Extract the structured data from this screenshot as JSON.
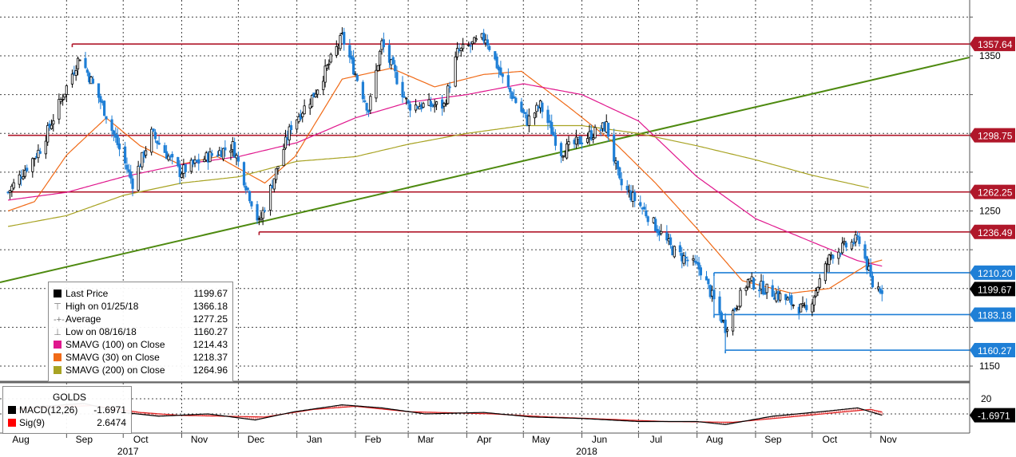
{
  "chart_data": {
    "type": "line",
    "instrument": "GOLDS",
    "x_axis": {
      "month_labels": [
        "Aug",
        "Sep",
        "Oct",
        "Nov",
        "Dec",
        "Jan",
        "Feb",
        "Mar",
        "Apr",
        "May",
        "Jun",
        "Jul",
        "Aug",
        "Sep",
        "Oct",
        "Nov"
      ],
      "year_labels": [
        "2017",
        "2018"
      ]
    },
    "y_axis": {
      "ticks": [
        1150,
        1250,
        1350
      ],
      "ylim": [
        1140,
        1385
      ]
    },
    "horizontal_levels": [
      {
        "value": 1357.64,
        "label": "1357.64",
        "color": "#b0172a",
        "start": "2017-09-04"
      },
      {
        "value": 1298.75,
        "label": "1298.75",
        "color": "#b0172a",
        "start": "2017-08-01"
      },
      {
        "value": 1262.25,
        "label": "1262.25",
        "color": "#b0172a",
        "start": "2017-08-01"
      },
      {
        "value": 1236.49,
        "label": "1236.49",
        "color": "#b0172a",
        "start": "2017-12-12"
      },
      {
        "value": 1210.2,
        "label": "1210.20",
        "color": "#1f7fd6",
        "start": "2018-08-10"
      },
      {
        "value": 1183.18,
        "label": "1183.18",
        "color": "#1f7fd6",
        "start": "2018-08-10"
      },
      {
        "value": 1160.27,
        "label": "1160.27",
        "color": "#1f7fd6",
        "start": "2018-08-16"
      }
    ],
    "trendline": {
      "from": {
        "date": "2017-07-15",
        "value": 1204
      },
      "to": {
        "date": "2018-11-07",
        "value": 1349
      },
      "color": "#4e8a10"
    },
    "price_series": {
      "name": "Last Price",
      "anchors": [
        [
          "2017-08-01",
          1262
        ],
        [
          "2017-08-18",
          1290
        ],
        [
          "2017-09-08",
          1350
        ],
        [
          "2017-09-20",
          1318
        ],
        [
          "2017-10-06",
          1268
        ],
        [
          "2017-10-16",
          1300
        ],
        [
          "2017-10-31",
          1275
        ],
        [
          "2017-11-15",
          1285
        ],
        [
          "2017-11-28",
          1292
        ],
        [
          "2017-12-12",
          1242
        ],
        [
          "2017-12-29",
          1305
        ],
        [
          "2018-01-10",
          1325
        ],
        [
          "2018-01-25",
          1362
        ],
        [
          "2018-02-08",
          1315
        ],
        [
          "2018-02-15",
          1358
        ],
        [
          "2018-03-01",
          1318
        ],
        [
          "2018-03-20",
          1318
        ],
        [
          "2018-03-27",
          1352
        ],
        [
          "2018-04-11",
          1362
        ],
        [
          "2018-04-20",
          1335
        ],
        [
          "2018-05-03",
          1308
        ],
        [
          "2018-05-10",
          1318
        ],
        [
          "2018-05-21",
          1288
        ],
        [
          "2018-06-14",
          1305
        ],
        [
          "2018-06-21",
          1268
        ],
        [
          "2018-07-03",
          1252
        ],
        [
          "2018-07-19",
          1225
        ],
        [
          "2018-08-03",
          1212
        ],
        [
          "2018-08-16",
          1175
        ],
        [
          "2018-08-28",
          1205
        ],
        [
          "2018-09-14",
          1195
        ],
        [
          "2018-09-28",
          1185
        ],
        [
          "2018-10-11",
          1222
        ],
        [
          "2018-10-26",
          1232
        ],
        [
          "2018-11-02",
          1202
        ],
        [
          "2018-11-07",
          1199.67
        ]
      ]
    },
    "moving_averages": [
      {
        "name": "SMAVG (30)",
        "color": "#f06a17",
        "anchors": [
          [
            "2017-08-01",
            1250
          ],
          [
            "2017-08-15",
            1256
          ],
          [
            "2017-09-01",
            1286
          ],
          [
            "2017-09-22",
            1310
          ],
          [
            "2017-10-10",
            1292
          ],
          [
            "2017-10-31",
            1280
          ],
          [
            "2017-11-20",
            1285
          ],
          [
            "2017-12-15",
            1268
          ],
          [
            "2017-12-31",
            1285
          ],
          [
            "2018-01-25",
            1335
          ],
          [
            "2018-02-20",
            1342
          ],
          [
            "2018-03-15",
            1330
          ],
          [
            "2018-04-10",
            1338
          ],
          [
            "2018-04-30",
            1340
          ],
          [
            "2018-05-25",
            1317
          ],
          [
            "2018-06-20",
            1292
          ],
          [
            "2018-07-10",
            1268
          ],
          [
            "2018-07-31",
            1240
          ],
          [
            "2018-08-25",
            1205
          ],
          [
            "2018-09-20",
            1197
          ],
          [
            "2018-10-10",
            1200
          ],
          [
            "2018-10-31",
            1216
          ],
          [
            "2018-11-07",
            1218.37
          ]
        ]
      },
      {
        "name": "SMAVG (100)",
        "color": "#e0178d",
        "anchors": [
          [
            "2017-08-01",
            1257
          ],
          [
            "2017-09-01",
            1262
          ],
          [
            "2017-10-01",
            1272
          ],
          [
            "2017-11-01",
            1280
          ],
          [
            "2017-12-01",
            1285
          ],
          [
            "2018-01-01",
            1294
          ],
          [
            "2018-02-01",
            1310
          ],
          [
            "2018-03-01",
            1320
          ],
          [
            "2018-04-01",
            1325
          ],
          [
            "2018-05-01",
            1332
          ],
          [
            "2018-06-01",
            1325
          ],
          [
            "2018-07-01",
            1308
          ],
          [
            "2018-08-01",
            1272
          ],
          [
            "2018-09-01",
            1245
          ],
          [
            "2018-10-01",
            1230
          ],
          [
            "2018-10-25",
            1218
          ],
          [
            "2018-11-07",
            1214.43
          ]
        ]
      },
      {
        "name": "SMAVG (200)",
        "color": "#a8a323",
        "anchors": [
          [
            "2017-08-01",
            1240
          ],
          [
            "2017-09-01",
            1247
          ],
          [
            "2017-10-01",
            1260
          ],
          [
            "2017-11-01",
            1268
          ],
          [
            "2017-12-01",
            1272
          ],
          [
            "2018-01-01",
            1282
          ],
          [
            "2018-02-01",
            1285
          ],
          [
            "2018-03-01",
            1293
          ],
          [
            "2018-04-01",
            1300
          ],
          [
            "2018-05-01",
            1305
          ],
          [
            "2018-06-01",
            1305
          ],
          [
            "2018-07-01",
            1300
          ],
          [
            "2018-08-01",
            1292
          ],
          [
            "2018-09-01",
            1283
          ],
          [
            "2018-10-01",
            1273
          ],
          [
            "2018-10-31",
            1264.96
          ]
        ]
      }
    ],
    "macd_panel": {
      "title": "GOLDS",
      "y_tick": 20,
      "current_label": "-1.6971",
      "macd_anchors": [
        [
          "2017-08-01",
          6
        ],
        [
          "2017-08-20",
          10
        ],
        [
          "2017-09-10",
          14
        ],
        [
          "2017-10-01",
          2
        ],
        [
          "2017-10-20",
          -3
        ],
        [
          "2017-11-15",
          0
        ],
        [
          "2017-12-10",
          -8
        ],
        [
          "2017-12-31",
          3
        ],
        [
          "2018-01-25",
          12
        ],
        [
          "2018-02-15",
          8
        ],
        [
          "2018-03-10",
          0
        ],
        [
          "2018-04-10",
          2
        ],
        [
          "2018-05-05",
          -4
        ],
        [
          "2018-06-01",
          -6
        ],
        [
          "2018-07-01",
          -10
        ],
        [
          "2018-08-01",
          -10
        ],
        [
          "2018-08-16",
          -14
        ],
        [
          "2018-09-10",
          -3
        ],
        [
          "2018-10-10",
          4
        ],
        [
          "2018-10-25",
          8
        ],
        [
          "2018-11-07",
          -1.7
        ]
      ],
      "signal_anchors": [
        [
          "2017-08-01",
          5
        ],
        [
          "2017-08-25",
          9
        ],
        [
          "2017-09-15",
          11
        ],
        [
          "2017-10-10",
          2
        ],
        [
          "2017-11-01",
          -2
        ],
        [
          "2017-12-15",
          -4
        ],
        [
          "2018-01-10",
          6
        ],
        [
          "2018-02-01",
          10
        ],
        [
          "2018-03-01",
          3
        ],
        [
          "2018-04-15",
          0
        ],
        [
          "2018-05-15",
          -4
        ],
        [
          "2018-06-15",
          -7
        ],
        [
          "2018-07-15",
          -10
        ],
        [
          "2018-08-20",
          -11
        ],
        [
          "2018-09-15",
          -5
        ],
        [
          "2018-10-15",
          2
        ],
        [
          "2018-11-01",
          6
        ],
        [
          "2018-11-07",
          2.6
        ]
      ]
    }
  },
  "legend": {
    "items": [
      {
        "label": "Last Price",
        "value": "1199.67",
        "swatch": "#000000"
      },
      {
        "label": "High on 01/25/18",
        "value": "1366.18",
        "glyph": "⊤"
      },
      {
        "label": "Average",
        "value": "1277.25",
        "glyph": "-+-"
      },
      {
        "label": "Low on 08/16/18",
        "value": "1160.27",
        "glyph": "⊥"
      },
      {
        "label": "SMAVG (100)  on Close",
        "value": "1214.43",
        "swatch": "#e0178d"
      },
      {
        "label": "SMAVG (30)  on Close",
        "value": "1218.37",
        "swatch": "#f06a17"
      },
      {
        "label": "SMAVG (200)  on Close",
        "value": "1264.96",
        "swatch": "#a8a323"
      }
    ]
  },
  "right_labels": [
    {
      "text": "1357.64",
      "bg": "#b0172a",
      "fg": "#ffffff",
      "value": 1357.64
    },
    {
      "text": "1298.75",
      "bg": "#b0172a",
      "fg": "#ffffff",
      "value": 1298.75
    },
    {
      "text": "1262.25",
      "bg": "#b0172a",
      "fg": "#ffffff",
      "value": 1262.25
    },
    {
      "text": "1236.49",
      "bg": "#b0172a",
      "fg": "#ffffff",
      "value": 1236.49
    },
    {
      "text": "1210.20",
      "bg": "#1f7fd6",
      "fg": "#ffffff",
      "value": 1210.2
    },
    {
      "text": "1199.67",
      "bg": "#000000",
      "fg": "#ffffff",
      "value": 1199.67
    },
    {
      "text": "1183.18",
      "bg": "#1f7fd6",
      "fg": "#ffffff",
      "value": 1183.18
    },
    {
      "text": "1160.27",
      "bg": "#1f7fd6",
      "fg": "#ffffff",
      "value": 1160.27
    }
  ],
  "macd_legend": {
    "title": "GOLDS",
    "rows": [
      {
        "label": "MACD(12,26)",
        "value": "-1.6971",
        "swatch": "#000000"
      },
      {
        "label": "Sig(9)",
        "value": "2.6474",
        "swatch": "#ff0000"
      }
    ]
  },
  "colors": {
    "up_candle": "#000000",
    "down_candle": "#1f7fd6",
    "grid": "#333333"
  }
}
